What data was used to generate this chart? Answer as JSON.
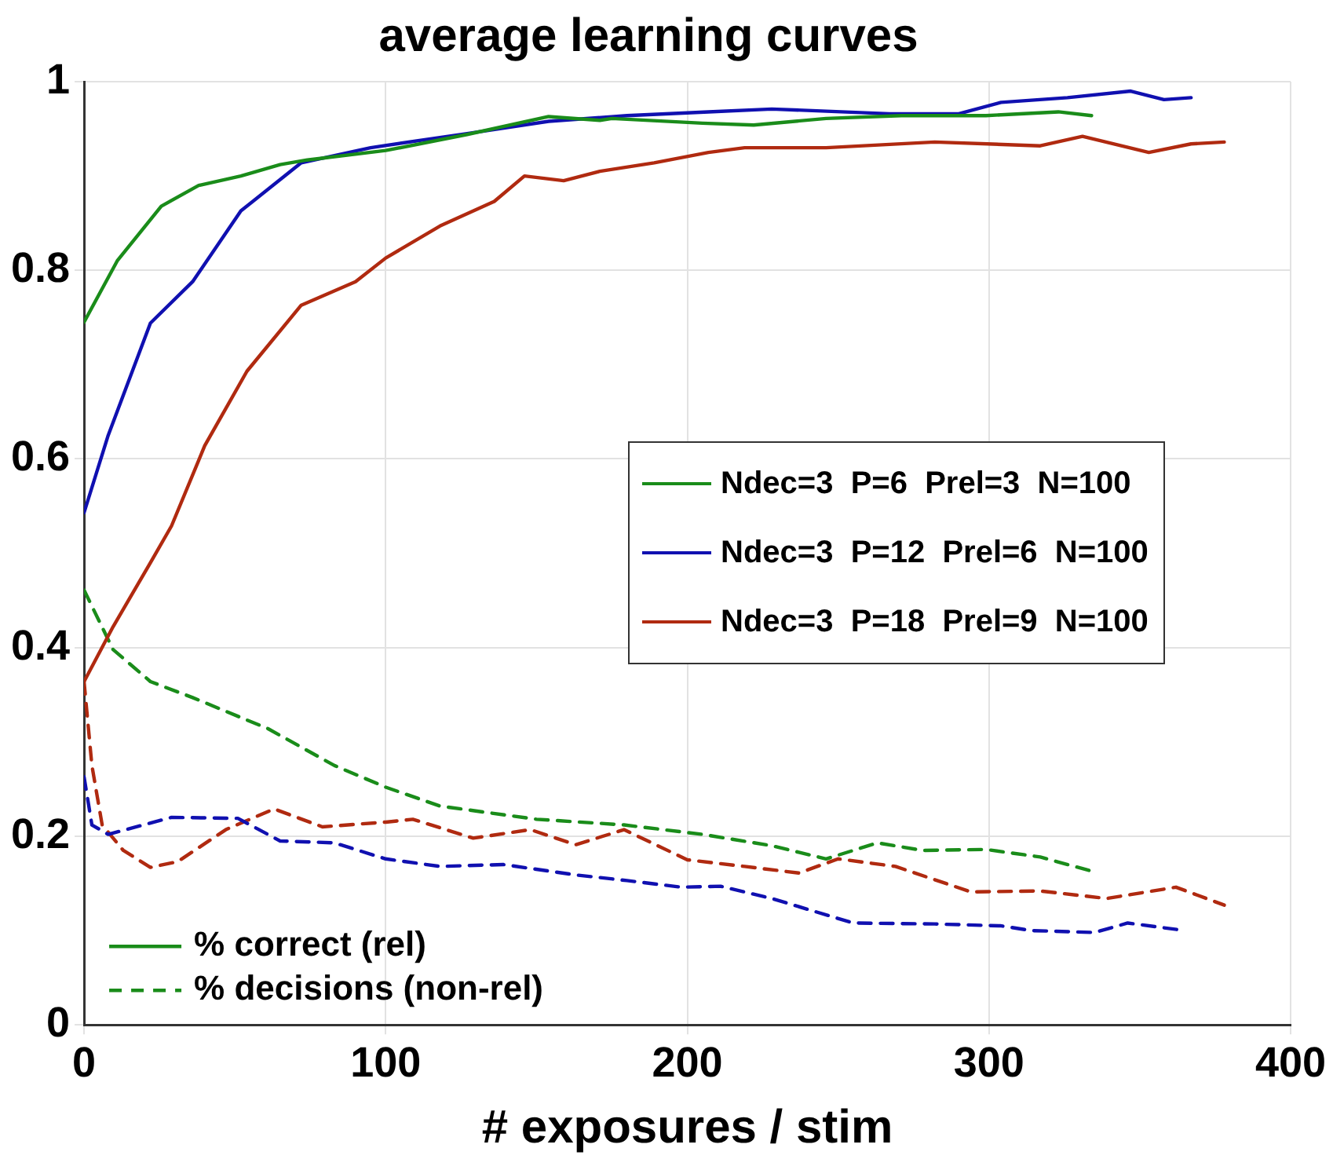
{
  "chart_data": {
    "type": "line",
    "title": "average learning curves",
    "xlabel": "# exposures / stim",
    "xlim": [
      0,
      400
    ],
    "xticks": [
      0,
      100,
      200,
      300,
      400
    ],
    "ylim": [
      0,
      1
    ],
    "yticks": [
      0,
      0.2,
      0.4,
      0.6,
      0.8,
      1
    ],
    "grid": true,
    "legend": "right",
    "line_style": "solid",
    "marker": "none",
    "annotations": [
      "% correct (rel)",
      "% decisions (non-rel)"
    ],
    "series": [
      {
        "name": "Ndec=3  P=6  Prel=3  N=100",
        "color": "#1a8c1a",
        "x": [
          0,
          11,
          25.6,
          38,
          52,
          65,
          74,
          100,
          127,
          154,
          171,
          175,
          205,
          222,
          246,
          271,
          299,
          323,
          334
        ],
        "values": [
          0.745,
          0.81,
          0.868,
          0.89,
          0.9,
          0.912,
          0.917,
          0.927,
          0.944,
          0.963,
          0.959,
          0.961,
          0.956,
          0.954,
          0.961,
          0.964,
          0.964,
          0.968,
          0.964
        ]
      },
      {
        "name": "Ndec=3  P=12  Prel=6  N=100",
        "color": "#1010b0",
        "x": [
          0,
          8,
          22,
          36,
          52,
          72,
          95,
          127,
          154,
          180,
          207,
          228,
          267,
          290,
          304,
          326,
          347,
          358,
          367
        ],
        "values": [
          0.543,
          0.625,
          0.744,
          0.788,
          0.863,
          0.914,
          0.93,
          0.945,
          0.958,
          0.964,
          0.968,
          0.971,
          0.966,
          0.966,
          0.978,
          0.983,
          0.99,
          0.981,
          0.983
        ]
      },
      {
        "name": "Ndec=3  P=18  Prel=9  N=100",
        "color": "#b02a10",
        "x": [
          0,
          9.6,
          22,
          29,
          40,
          54,
          72,
          90,
          100,
          118,
          136,
          146,
          159,
          171,
          189,
          207,
          219,
          246,
          282,
          317,
          331,
          353,
          367,
          378
        ],
        "values": [
          0.364,
          0.422,
          0.49,
          0.529,
          0.614,
          0.693,
          0.763,
          0.788,
          0.813,
          0.847,
          0.873,
          0.9,
          0.895,
          0.905,
          0.914,
          0.925,
          0.93,
          0.93,
          0.936,
          0.932,
          0.942,
          0.925,
          0.934,
          0.936
        ]
      },
      {
        "color": "#1a8c1a",
        "line_style": "dashed",
        "x": [
          0,
          9.6,
          22,
          36,
          61,
          83,
          100,
          118,
          150,
          179,
          205,
          228,
          246,
          263,
          278,
          299,
          317,
          334
        ],
        "values": [
          0.461,
          0.398,
          0.364,
          0.347,
          0.314,
          0.275,
          0.252,
          0.232,
          0.218,
          0.212,
          0.202,
          0.19,
          0.176,
          0.193,
          0.185,
          0.186,
          0.178,
          0.163
        ]
      },
      {
        "color": "#1010b0",
        "line_style": "dashed",
        "x": [
          0,
          2.6,
          8,
          29,
          51,
          65,
          83,
          100,
          118,
          139,
          163,
          180,
          198,
          211,
          228,
          255,
          282,
          304,
          314,
          335,
          346,
          365
        ],
        "values": [
          0.263,
          0.212,
          0.202,
          0.22,
          0.219,
          0.195,
          0.193,
          0.176,
          0.168,
          0.17,
          0.159,
          0.153,
          0.146,
          0.147,
          0.134,
          0.108,
          0.107,
          0.105,
          0.1,
          0.098,
          0.108,
          0.1
        ]
      },
      {
        "color": "#b02a10",
        "line_style": "dashed",
        "x": [
          0,
          2.6,
          6,
          13,
          22,
          31,
          47,
          63,
          79,
          100,
          109,
          129,
          148,
          163,
          179,
          200,
          219,
          237,
          250,
          269,
          294,
          317,
          339,
          362,
          378
        ],
        "values": [
          0.364,
          0.275,
          0.212,
          0.185,
          0.167,
          0.173,
          0.207,
          0.229,
          0.21,
          0.215,
          0.218,
          0.198,
          0.207,
          0.191,
          0.207,
          0.175,
          0.168,
          0.161,
          0.176,
          0.168,
          0.141,
          0.142,
          0.134,
          0.146,
          0.127
        ]
      }
    ]
  }
}
